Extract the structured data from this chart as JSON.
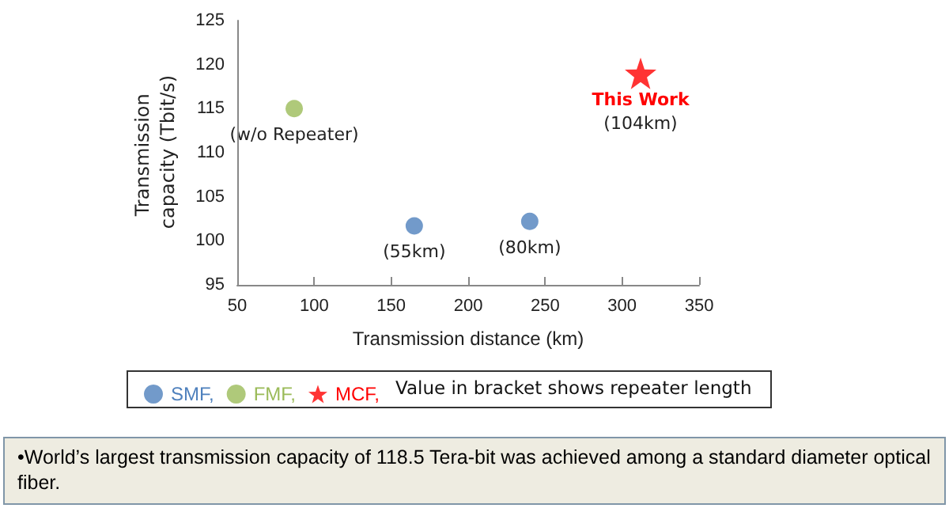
{
  "chart_data": {
    "type": "scatter",
    "xlabel": "Transmission distance (km)",
    "ylabel": "Transmission capacity (Tbit/s)",
    "xlim": [
      50,
      350
    ],
    "xticks": [
      50,
      100,
      150,
      200,
      250,
      300,
      350
    ],
    "ylim": [
      95,
      125
    ],
    "yticks": [
      95,
      100,
      105,
      110,
      115,
      120,
      125
    ],
    "grid": false,
    "legend": "bottom",
    "series": [
      {
        "name": "SMF,",
        "color": "#4f81bd",
        "marker": "circle",
        "x": [
          165,
          240
        ],
        "values": [
          101.7,
          102.2
        ]
      },
      {
        "name": "FMF,",
        "color": "#9bbb59",
        "marker": "circle",
        "x": [
          87
        ],
        "values": [
          115
        ]
      },
      {
        "name": "MCF,",
        "color": "#ff0000",
        "marker": "star",
        "x": [
          312
        ],
        "values": [
          119
        ]
      }
    ],
    "annotations": [
      {
        "text": "(w/o Repeater)",
        "x": 87,
        "y": 115
      },
      {
        "text": "(55km)",
        "x": 165,
        "y": 101.7
      },
      {
        "text": "(80km)",
        "x": 240,
        "y": 102.2
      },
      {
        "text": "This Work",
        "x": 312,
        "y": 119
      },
      {
        "text": "(104km)",
        "x": 312,
        "y": 119
      },
      "Value in bracket shows repeater length",
      "•World’s largest transmission capacity of 118.5 Tera-bit was achieved among a standard diameter optical fiber."
    ]
  }
}
